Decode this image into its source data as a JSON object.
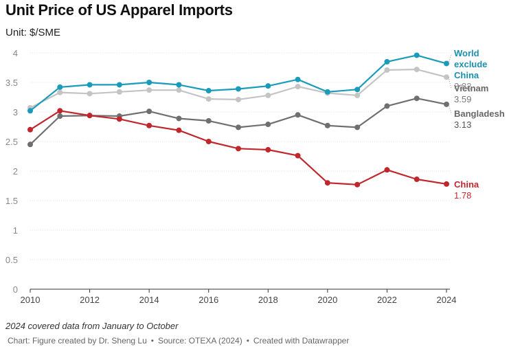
{
  "title": "Unit Price of US Apparel Imports",
  "subtitle": "Unit: $/SME",
  "note": "2024 covered data from January to October",
  "footer": {
    "chart": "Chart: Figure created by Dr. Sheng Lu",
    "separator": "•",
    "source": "Source: OTEXA (2024)",
    "tool": "Created with Datawrapper"
  },
  "chart_data": {
    "type": "line",
    "x": [
      2010,
      2011,
      2012,
      2013,
      2014,
      2015,
      2016,
      2017,
      2018,
      2019,
      2020,
      2021,
      2022,
      2023,
      2024
    ],
    "xticks": [
      2010,
      2012,
      2014,
      2016,
      2018,
      2020,
      2022,
      2024
    ],
    "yticks": [
      0,
      0.5,
      1,
      1.5,
      2,
      2.5,
      3,
      3.5,
      4
    ],
    "xlim": [
      2010,
      2024
    ],
    "ylim": [
      0,
      4
    ],
    "grid": true,
    "series": [
      {
        "name": "Vietnam",
        "label_lines": [
          "Vietnam"
        ],
        "end_value": "3.59",
        "color": "#c4c4c4",
        "values": [
          3.07,
          3.33,
          3.31,
          3.34,
          3.37,
          3.37,
          3.22,
          3.21,
          3.28,
          3.43,
          3.32,
          3.28,
          3.71,
          3.72,
          3.59
        ]
      },
      {
        "name": "Bangladesh",
        "label_lines": [
          "Bangladesh"
        ],
        "end_value": "3.13",
        "color": "#6f6f6f",
        "values": [
          2.45,
          2.93,
          2.94,
          2.93,
          3.01,
          2.89,
          2.85,
          2.74,
          2.79,
          2.95,
          2.77,
          2.74,
          3.1,
          3.23,
          3.13
        ]
      },
      {
        "name": "China",
        "label_lines": [
          "China"
        ],
        "end_value": "1.78",
        "color": "#c0272d",
        "values": [
          2.7,
          3.02,
          2.94,
          2.88,
          2.77,
          2.69,
          2.5,
          2.38,
          2.36,
          2.26,
          1.8,
          1.77,
          2.02,
          1.86,
          1.78
        ]
      },
      {
        "name": "World exclude China",
        "label_lines": [
          "World",
          "exclude",
          "China"
        ],
        "end_value": "3.82",
        "color": "#1a9bba",
        "values": [
          3.02,
          3.42,
          3.46,
          3.46,
          3.5,
          3.46,
          3.36,
          3.39,
          3.44,
          3.55,
          3.34,
          3.38,
          3.85,
          3.96,
          3.82
        ]
      }
    ]
  }
}
